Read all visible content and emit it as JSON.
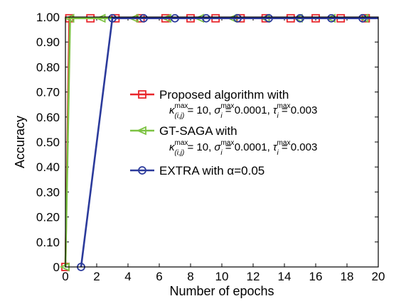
{
  "chart_data": {
    "type": "line",
    "xlabel": "Number of epochs",
    "ylabel": "Accuracy",
    "xlim": [
      0,
      20
    ],
    "ylim": [
      0,
      1
    ],
    "x_ticks": [
      "0",
      "2",
      "4",
      "6",
      "8",
      "10",
      "12",
      "14",
      "16",
      "18",
      "20"
    ],
    "y_ticks": [
      "0",
      "0.10",
      "0.20",
      "0.30",
      "0.40",
      "0.50",
      "0.60",
      "0.70",
      "0.80",
      "0.90",
      "1.00"
    ],
    "grid": false,
    "legend_position": "right",
    "series": [
      {
        "name": "Proposed algorithm with",
        "param": "κ(i,j)max = 10, σimax = 0.0001, τimax = 0.003",
        "color": "#e8262b",
        "marker": "square",
        "x": [
          0,
          0.25,
          1.6,
          3.2,
          4.8,
          6.4,
          8.0,
          9.6,
          11.2,
          12.8,
          14.4,
          16.0,
          17.6,
          19.2,
          20
        ],
        "y": [
          0,
          0.995,
          0.995,
          0.995,
          0.995,
          0.995,
          0.995,
          0.995,
          0.995,
          0.995,
          0.995,
          0.995,
          0.995,
          0.995,
          0.995
        ]
      },
      {
        "name": "GT-SAGA with",
        "param": "κ(i,j)max = 10, σimax = 0.0001, τimax = 0.003",
        "color": "#7cc242",
        "marker": "triangle-left",
        "x": [
          0,
          0.3,
          2.3,
          4.4,
          6.5,
          8.6,
          10.7,
          12.8,
          14.9,
          17.0,
          19.1,
          20
        ],
        "y": [
          0,
          0.995,
          0.995,
          0.995,
          0.995,
          0.995,
          0.995,
          0.995,
          0.995,
          0.995,
          0.995,
          0.995
        ]
      },
      {
        "name": "EXTRA with α=0.05",
        "param": "",
        "color": "#2b3a9b",
        "marker": "circle",
        "x": [
          1,
          3,
          5,
          7,
          9,
          11,
          13,
          15,
          17,
          19,
          20
        ],
        "y": [
          0,
          0.995,
          0.995,
          0.995,
          0.995,
          0.995,
          0.995,
          0.995,
          0.995,
          0.995,
          0.995
        ]
      }
    ]
  }
}
